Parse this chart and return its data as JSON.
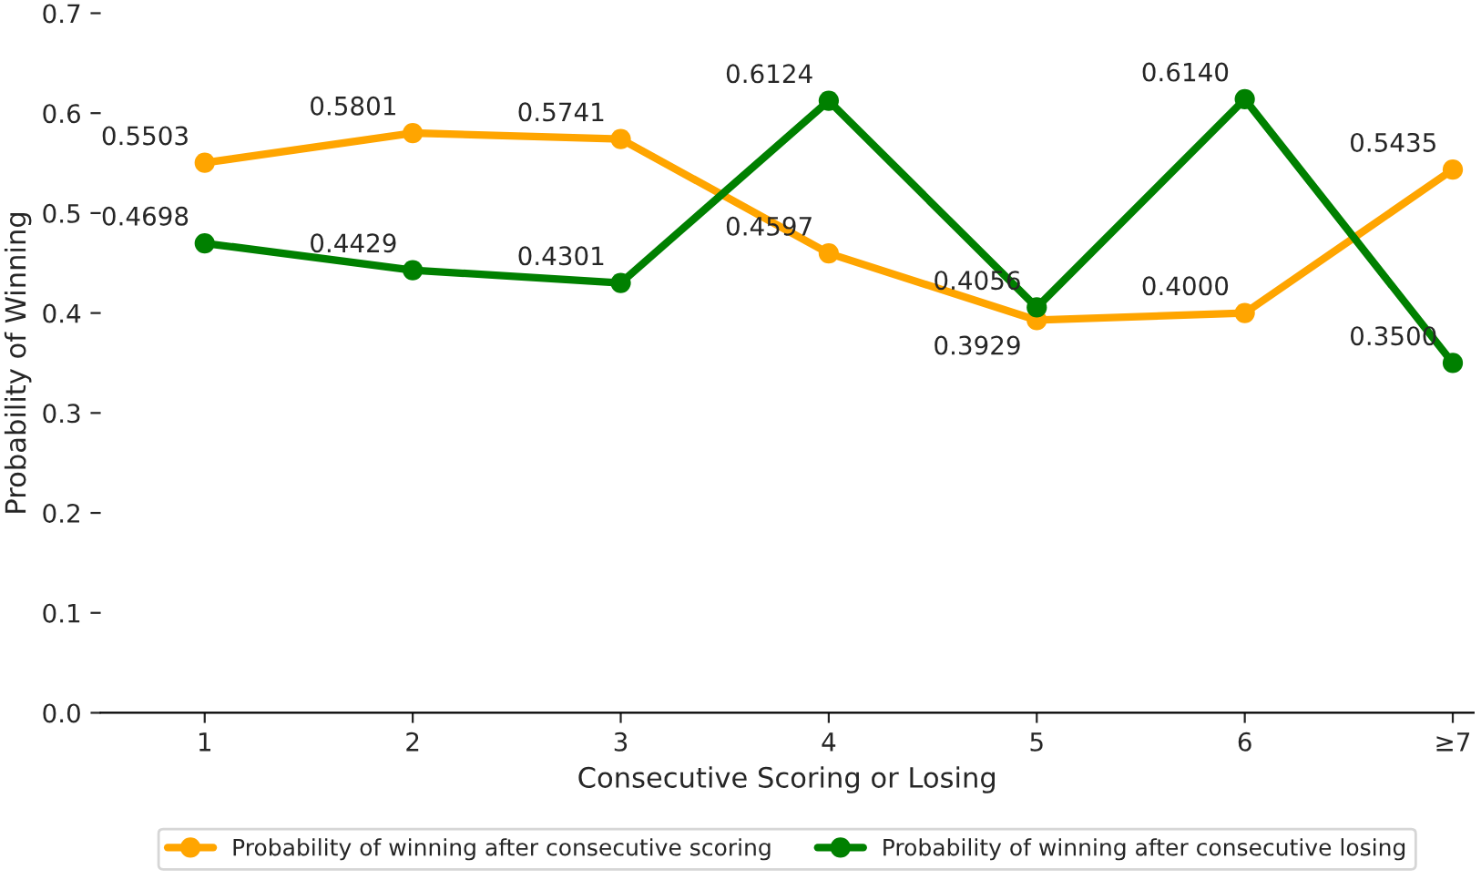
{
  "chart_data": {
    "type": "line",
    "xlabel": "Consecutive Scoring or Losing",
    "ylabel": "Probability of Winning",
    "categories": [
      "1",
      "2",
      "3",
      "4",
      "5",
      "6",
      "≥7"
    ],
    "series": [
      {
        "name": "Probability of winning after consecutive scoring",
        "color": "#ffa500",
        "values": [
          0.5503,
          0.5801,
          0.5741,
          0.4597,
          0.3929,
          0.4,
          0.5435
        ],
        "value_labels": [
          "0.5503",
          "0.5801",
          "0.5741",
          "0.4597",
          "0.3929",
          "0.4000",
          "0.5435"
        ]
      },
      {
        "name": "Probability of winning after consecutive losing",
        "color": "#008000",
        "values": [
          0.4698,
          0.4429,
          0.4301,
          0.6124,
          0.4056,
          0.614,
          0.35
        ],
        "value_labels": [
          "0.4698",
          "0.4429",
          "0.4301",
          "0.6124",
          "0.4056",
          "0.6140",
          "0.3500"
        ]
      }
    ],
    "ylim": [
      0,
      0.7
    ],
    "yticks": [
      {
        "value": 0,
        "label": "0.0"
      },
      0.1,
      0.2,
      0.3,
      0.4,
      0.5,
      0.6,
      0.7
    ],
    "marker": "circle",
    "line_style": "solid",
    "legend": "bottom",
    "grid": false
  }
}
